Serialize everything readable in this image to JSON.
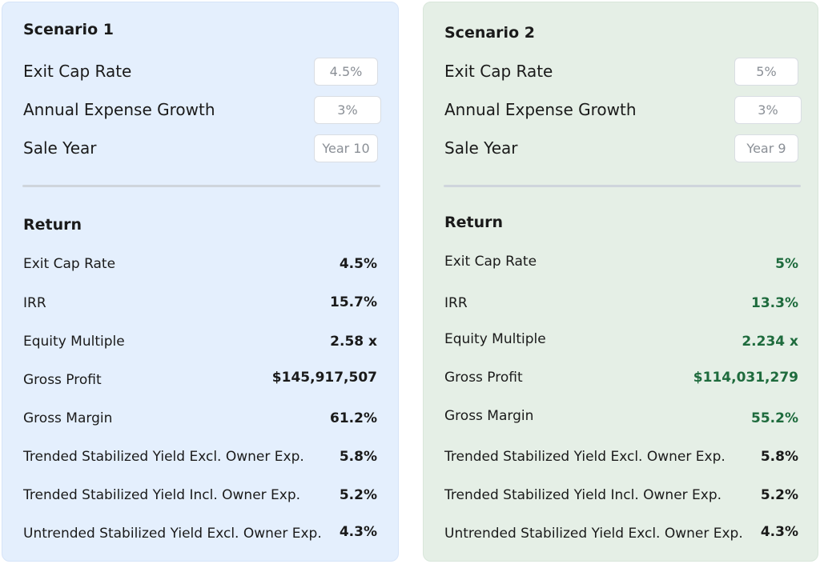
{
  "colors": {
    "scenario1_bg": "#e4effd",
    "scenario2_bg": "#e5efe6",
    "scenario2_accent": "#1e6b3d"
  },
  "scenario1": {
    "title": "Scenario 1",
    "inputs": {
      "exit_cap_rate": {
        "label": "Exit Cap Rate",
        "value": "4.5%"
      },
      "expense_growth": {
        "label": "Annual Expense Growth",
        "value": "3%"
      },
      "sale_year": {
        "label": "Sale Year",
        "value": "Year 10"
      }
    },
    "return_title": "Return",
    "returns": [
      {
        "label": "Exit Cap Rate",
        "value": "4.5%"
      },
      {
        "label": "IRR",
        "value": "15.7%"
      },
      {
        "label": "Equity Multiple",
        "value": "2.58 x"
      },
      {
        "label": "Gross Profit",
        "value": "$145,917,507"
      },
      {
        "label": "Gross Margin",
        "value": "61.2%"
      },
      {
        "label": "Trended Stabilized Yield Excl. Owner Exp.",
        "value": "5.8%"
      },
      {
        "label": "Trended Stabilized Yield Incl. Owner Exp.",
        "value": "5.2%"
      },
      {
        "label": "Untrended Stabilized Yield Excl. Owner Exp.",
        "value": "4.3%"
      }
    ]
  },
  "scenario2": {
    "title": "Scenario 2",
    "inputs": {
      "exit_cap_rate": {
        "label": "Exit Cap Rate",
        "value": "5%"
      },
      "expense_growth": {
        "label": "Annual Expense Growth",
        "value": "3%"
      },
      "sale_year": {
        "label": "Sale Year",
        "value": "Year 9"
      }
    },
    "return_title": "Return",
    "returns": [
      {
        "label": "Exit Cap Rate",
        "value": "5%"
      },
      {
        "label": "IRR",
        "value": "13.3%"
      },
      {
        "label": "Equity Multiple",
        "value": "2.234 x"
      },
      {
        "label": "Gross Profit",
        "value": "$114,031,279"
      },
      {
        "label": "Gross Margin",
        "value": "55.2%"
      },
      {
        "label": "Trended Stabilized Yield Excl. Owner Exp.",
        "value": "5.8%"
      },
      {
        "label": "Trended Stabilized Yield Incl. Owner Exp.",
        "value": "5.2%"
      },
      {
        "label": "Untrended Stabilized Yield Excl. Owner Exp.",
        "value": "4.3%"
      }
    ]
  }
}
